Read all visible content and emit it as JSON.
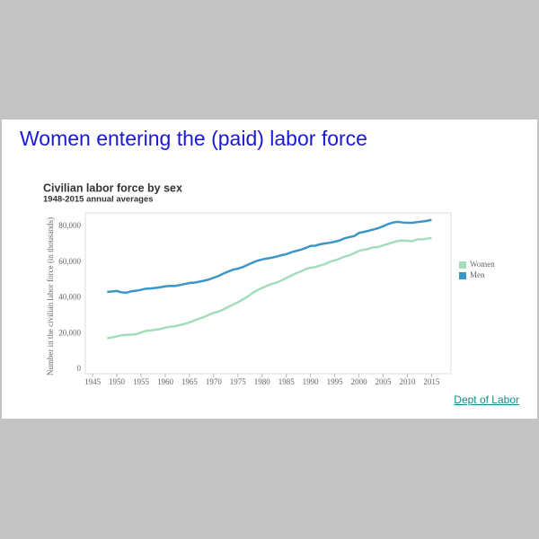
{
  "heading": "Women entering the (paid) labor force",
  "link": "Dept of Labor",
  "chart_data": {
    "type": "line",
    "title": "Civilian labor force by sex",
    "subtitle": "1948-2015 annual averages",
    "ylabel": "Number in the civilian labor force (in thousands)",
    "x": [
      1948,
      1949,
      1950,
      1951,
      1952,
      1953,
      1954,
      1955,
      1956,
      1957,
      1958,
      1959,
      1960,
      1961,
      1962,
      1963,
      1964,
      1965,
      1966,
      1967,
      1968,
      1969,
      1970,
      1971,
      1972,
      1973,
      1974,
      1975,
      1976,
      1977,
      1978,
      1979,
      1980,
      1981,
      1982,
      1983,
      1984,
      1985,
      1986,
      1987,
      1988,
      1989,
      1990,
      1991,
      1992,
      1993,
      1994,
      1995,
      1996,
      1997,
      1998,
      1999,
      2000,
      2001,
      2002,
      2003,
      2004,
      2005,
      2006,
      2007,
      2008,
      2009,
      2010,
      2011,
      2012,
      2013,
      2014,
      2015
    ],
    "series": [
      {
        "name": "Women",
        "color": "#a3ddb9",
        "values": [
          17335,
          17788,
          18389,
          19016,
          19269,
          19382,
          19678,
          20548,
          21461,
          21732,
          22118,
          22483,
          23240,
          23806,
          24014,
          24704,
          25412,
          26200,
          27299,
          28360,
          29204,
          30513,
          31543,
          32202,
          33479,
          34804,
          36211,
          37475,
          38983,
          40613,
          42631,
          44235,
          45487,
          46696,
          47755,
          48503,
          49709,
          51050,
          52413,
          53658,
          54742,
          56030,
          56829,
          57178,
          58141,
          58795,
          60239,
          60944,
          61857,
          63036,
          63714,
          64855,
          66303,
          66848,
          67363,
          68272,
          68421,
          69288,
          70173,
          70988,
          71767,
          72019,
          71904,
          71642,
          72648,
          72722,
          73039,
          73510
        ]
      },
      {
        "name": "Men",
        "color": "#3b97c7",
        "values": [
          43286,
          43498,
          43819,
          43001,
          42869,
          43633,
          43965,
          44475,
          45091,
          45197,
          45521,
          45886,
          46388,
          46653,
          46600,
          47129,
          47679,
          48255,
          48471,
          48987,
          49533,
          50221,
          51228,
          52180,
          53555,
          54624,
          55739,
          56299,
          57174,
          58396,
          59620,
          60726,
          61453,
          61974,
          62450,
          63047,
          63835,
          64411,
          65422,
          66207,
          66927,
          67840,
          69011,
          69168,
          69964,
          70404,
          70817,
          71360,
          72087,
          73261,
          73959,
          74512,
          76280,
          76886,
          77500,
          78238,
          78980,
          80033,
          81255,
          82136,
          82520,
          82123,
          81985,
          81975,
          82327,
          82667,
          83033,
          83620
        ]
      }
    ],
    "xlim": [
      1943.5,
      2019
    ],
    "xticks": [
      1945,
      1950,
      1955,
      1960,
      1965,
      1970,
      1975,
      1980,
      1985,
      1990,
      1995,
      2000,
      2005,
      2010,
      2015
    ],
    "ylim": [
      -2500,
      87500
    ],
    "yticks": [
      0,
      {
        "value": 20000,
        "label": "20,000"
      },
      {
        "value": 40000,
        "label": "40,000"
      },
      {
        "value": 60000,
        "label": "60,000"
      },
      {
        "value": 80000,
        "label": "80,000"
      }
    ],
    "grid": false,
    "legend": "right"
  }
}
